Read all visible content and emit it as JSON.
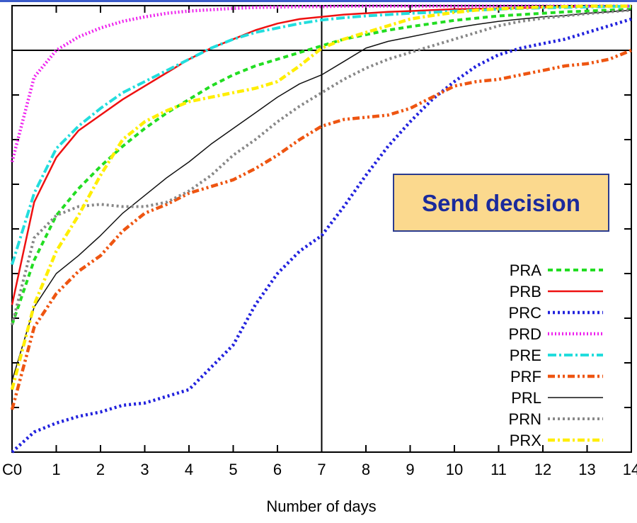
{
  "chart_data": {
    "type": "line",
    "xlabel": "Number of days",
    "ylabel": "",
    "title": "",
    "xlim": [
      0,
      14
    ],
    "ylim": [
      0,
      100
    ],
    "x_ticks": [
      0,
      1,
      2,
      3,
      4,
      5,
      6,
      7,
      8,
      9,
      10,
      11,
      12,
      13,
      14
    ],
    "x_tick_labels": [
      "C0",
      "1",
      "2",
      "3",
      "4",
      "5",
      "6",
      "7",
      "8",
      "9",
      "10",
      "11",
      "12",
      "13",
      "14"
    ],
    "y_ticks": [
      0,
      10,
      20,
      30,
      40,
      50,
      60,
      70,
      80,
      90,
      100
    ],
    "reference_lines": {
      "x": 7,
      "y": 90
    },
    "legend_position": "bottom-right",
    "annotation": {
      "text": "Send decision",
      "bg": "#fbd98e",
      "border": "#2a3b8f",
      "color": "#1a2a9c"
    },
    "x": [
      0,
      0.5,
      1,
      1.5,
      2,
      2.5,
      3,
      3.5,
      4,
      4.5,
      5,
      5.5,
      6,
      6.5,
      7,
      7.5,
      8,
      8.5,
      9,
      9.5,
      10,
      10.5,
      11,
      11.5,
      12,
      12.5,
      13,
      13.5,
      14
    ],
    "series": [
      {
        "name": "PRA",
        "color": "#22dd22",
        "dash": "7,5",
        "width": 4,
        "values": [
          28.5,
          43,
          53,
          59,
          64,
          68.5,
          72.5,
          76,
          79,
          82,
          84.5,
          86.5,
          88,
          89.5,
          91,
          92.5,
          93.5,
          94.5,
          95.3,
          96,
          96.7,
          97.2,
          97.7,
          98,
          98.3,
          98.6,
          98.8,
          99,
          99.2
        ]
      },
      {
        "name": "PRB",
        "color": "#ee1111",
        "dash": "",
        "width": 2.5,
        "values": [
          33,
          56,
          66,
          72,
          75.5,
          79,
          82,
          85,
          88,
          90.5,
          92.5,
          94.5,
          96,
          97,
          97.5,
          98,
          98.3,
          98.6,
          98.8,
          99,
          99.2,
          99.3,
          99.4,
          99.5,
          99.6,
          99.7,
          99.8,
          99.8,
          99.9
        ]
      },
      {
        "name": "PRC",
        "color": "#2222dd",
        "dash": "3,4",
        "width": 4.5,
        "values": [
          0,
          4.5,
          6.5,
          8,
          9,
          10.5,
          11,
          12.5,
          14,
          19,
          24,
          33,
          40,
          45,
          48.5,
          55,
          62,
          68.5,
          74,
          79,
          83,
          86.5,
          89,
          90.5,
          91.5,
          92.5,
          94,
          95.5,
          97
        ]
      },
      {
        "name": "PRD",
        "color": "#ee22ee",
        "dash": "2,3",
        "width": 4.5,
        "values": [
          65,
          84,
          90,
          93,
          95,
          96.5,
          97.5,
          98.3,
          98.8,
          99.1,
          99.4,
          99.6,
          99.7,
          99.8,
          99.8,
          99.9,
          99.9,
          99.9,
          99.9,
          99.9,
          99.9,
          99.9,
          99.9,
          99.9,
          99.9,
          99.9,
          99.9,
          99.9,
          99.9
        ]
      },
      {
        "name": "PRE",
        "color": "#22dddd",
        "dash": "12,4,3,4",
        "width": 4,
        "values": [
          42,
          58,
          68,
          73,
          77,
          80.5,
          83,
          85.5,
          88,
          90.5,
          92.5,
          94,
          95,
          96,
          96.8,
          97.3,
          97.7,
          98,
          98.3,
          98.5,
          98.8,
          99,
          99.2,
          99.4,
          99.5,
          99.6,
          99.7,
          99.8,
          99.9
        ]
      },
      {
        "name": "PRF",
        "color": "#ee5511",
        "dash": "10,4,3,4,3,4",
        "width": 4.5,
        "values": [
          9.5,
          28,
          35.5,
          40.5,
          44,
          49.5,
          53.5,
          55.5,
          58,
          59.5,
          61,
          63.5,
          66.5,
          70,
          73,
          74.5,
          75,
          75.5,
          77,
          79.5,
          82,
          83,
          83.5,
          84.5,
          85.5,
          86.5,
          87,
          88,
          90
        ]
      },
      {
        "name": "PRL",
        "color": "#111111",
        "dash": "",
        "width": 1.5,
        "values": [
          16,
          32.5,
          40,
          44,
          48.5,
          53.5,
          57.5,
          61.5,
          65,
          69,
          72.5,
          76,
          79.5,
          82.5,
          84.5,
          87.5,
          90.5,
          92,
          93,
          94,
          95,
          95.8,
          96.5,
          97,
          97.5,
          97.8,
          98.3,
          98.6,
          99
        ]
      },
      {
        "name": "PRN",
        "color": "#888888",
        "dash": "3,4",
        "width": 4,
        "values": [
          28.5,
          48,
          53,
          55,
          55.5,
          55,
          55,
          56,
          58.5,
          62,
          66.5,
          70,
          74,
          77.5,
          80.5,
          83.5,
          86,
          88,
          89.5,
          91,
          92.5,
          94,
          95.5,
          96.5,
          97.2,
          97.7,
          98.2,
          98.6,
          99
        ]
      },
      {
        "name": "PRX",
        "color": "#ffee00",
        "dash": "10,4,3,4",
        "width": 4.5,
        "values": [
          14,
          33,
          45,
          53,
          62,
          70,
          74,
          76.5,
          78.5,
          79.5,
          80.5,
          81.5,
          83,
          86.5,
          90.5,
          92.5,
          94,
          95.5,
          97,
          97.8,
          98.5,
          99,
          99.3,
          99.5,
          99.7,
          99.8,
          99.9,
          99.9,
          99.9
        ]
      }
    ]
  }
}
